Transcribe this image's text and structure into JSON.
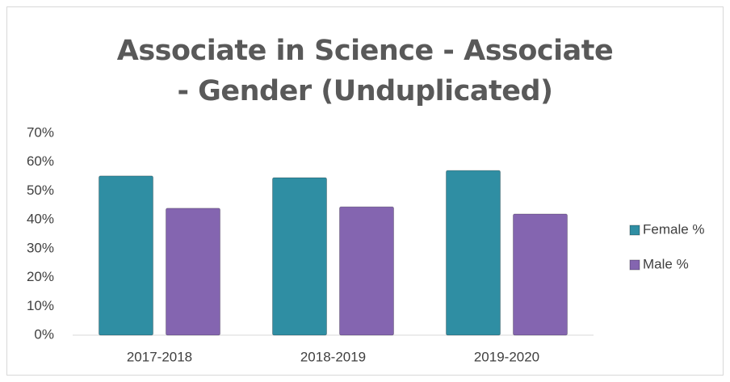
{
  "chart_data": {
    "type": "bar",
    "title": "Associate in Science - Associate - Gender (Unduplicated)",
    "categories": [
      "2017-2018",
      "2018-2019",
      "2019-2020"
    ],
    "series": [
      {
        "name": "Female %",
        "color": "#2f8ea3",
        "values": [
          55.2,
          54.6,
          57.1
        ]
      },
      {
        "name": "Male %",
        "color": "#8465b0",
        "values": [
          44.0,
          44.5,
          42.0
        ]
      }
    ],
    "ylim": [
      0,
      70
    ],
    "yticks": [
      {
        "value": 0,
        "label": "0%"
      },
      {
        "value": 10,
        "label": "10%"
      },
      {
        "value": 20,
        "label": "20%"
      },
      {
        "value": 30,
        "label": "30%"
      },
      {
        "value": 40,
        "label": "40%"
      },
      {
        "value": 50,
        "label": "50%"
      },
      {
        "value": 60,
        "label": "60%"
      },
      {
        "value": 70,
        "label": "70%"
      }
    ],
    "grid": false,
    "legend": "right"
  }
}
